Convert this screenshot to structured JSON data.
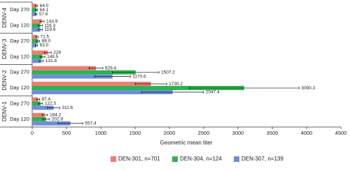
{
  "chart_data": {
    "type": "grouped-hbar",
    "x_label": "Geometric mean titer",
    "groups": [
      "DENV-4",
      "DENV-3",
      "DENV-2",
      "DENV-1"
    ],
    "categories": [
      "Day 270",
      "Day 120",
      "Day 270",
      "Day 120",
      "Day 270",
      "Day 120",
      "Day 270",
      "Day 120"
    ],
    "series": [
      {
        "name": "DEN-301, n=701",
        "color": "#f07b72",
        "values": [
          64.0,
          143.9,
          71.5,
          228,
          929.4,
          1730.2,
          87.4,
          184.2
        ],
        "value_labels": [
          "64.0",
          "143.9",
          "71.5",
          "228",
          "929.4",
          "1730.2",
          "87.4",
          "184.2"
        ],
        "errors": [
          15,
          30,
          15,
          50,
          100,
          230,
          20,
          40
        ]
      },
      {
        "name": "DEN-304, n=124",
        "color": "#2db34f",
        "values": [
          64.1,
          116.3,
          88.0,
          149.5,
          1507.2,
          3090.3,
          122.5,
          202.9
        ],
        "value_labels": [
          "64.1",
          "116.3",
          "88.0",
          "149.5",
          "1507.2",
          "3090.3",
          "122.5",
          "202.9"
        ],
        "errors": [
          15,
          30,
          20,
          35,
          340,
          800,
          30,
          50
        ]
      },
      {
        "name": "DEN-307, n=139",
        "color": "#6e8fd8",
        "values": [
          57.6,
          119.6,
          63.0,
          131.8,
          1170.6,
          2047.4,
          311.6,
          557.4
        ],
        "value_labels": [
          "57.6",
          "119.6",
          "63.0",
          "131.8",
          "1170.6",
          "2047.4",
          "311.6",
          "557.4"
        ],
        "errors": [
          12,
          30,
          15,
          30,
          260,
          450,
          90,
          180
        ]
      }
    ],
    "xlim": [
      0,
      4500
    ],
    "xticks": [
      0,
      500,
      1000,
      1500,
      2000,
      2500,
      3000,
      3500,
      4000,
      4500
    ],
    "legend": "bottom"
  }
}
